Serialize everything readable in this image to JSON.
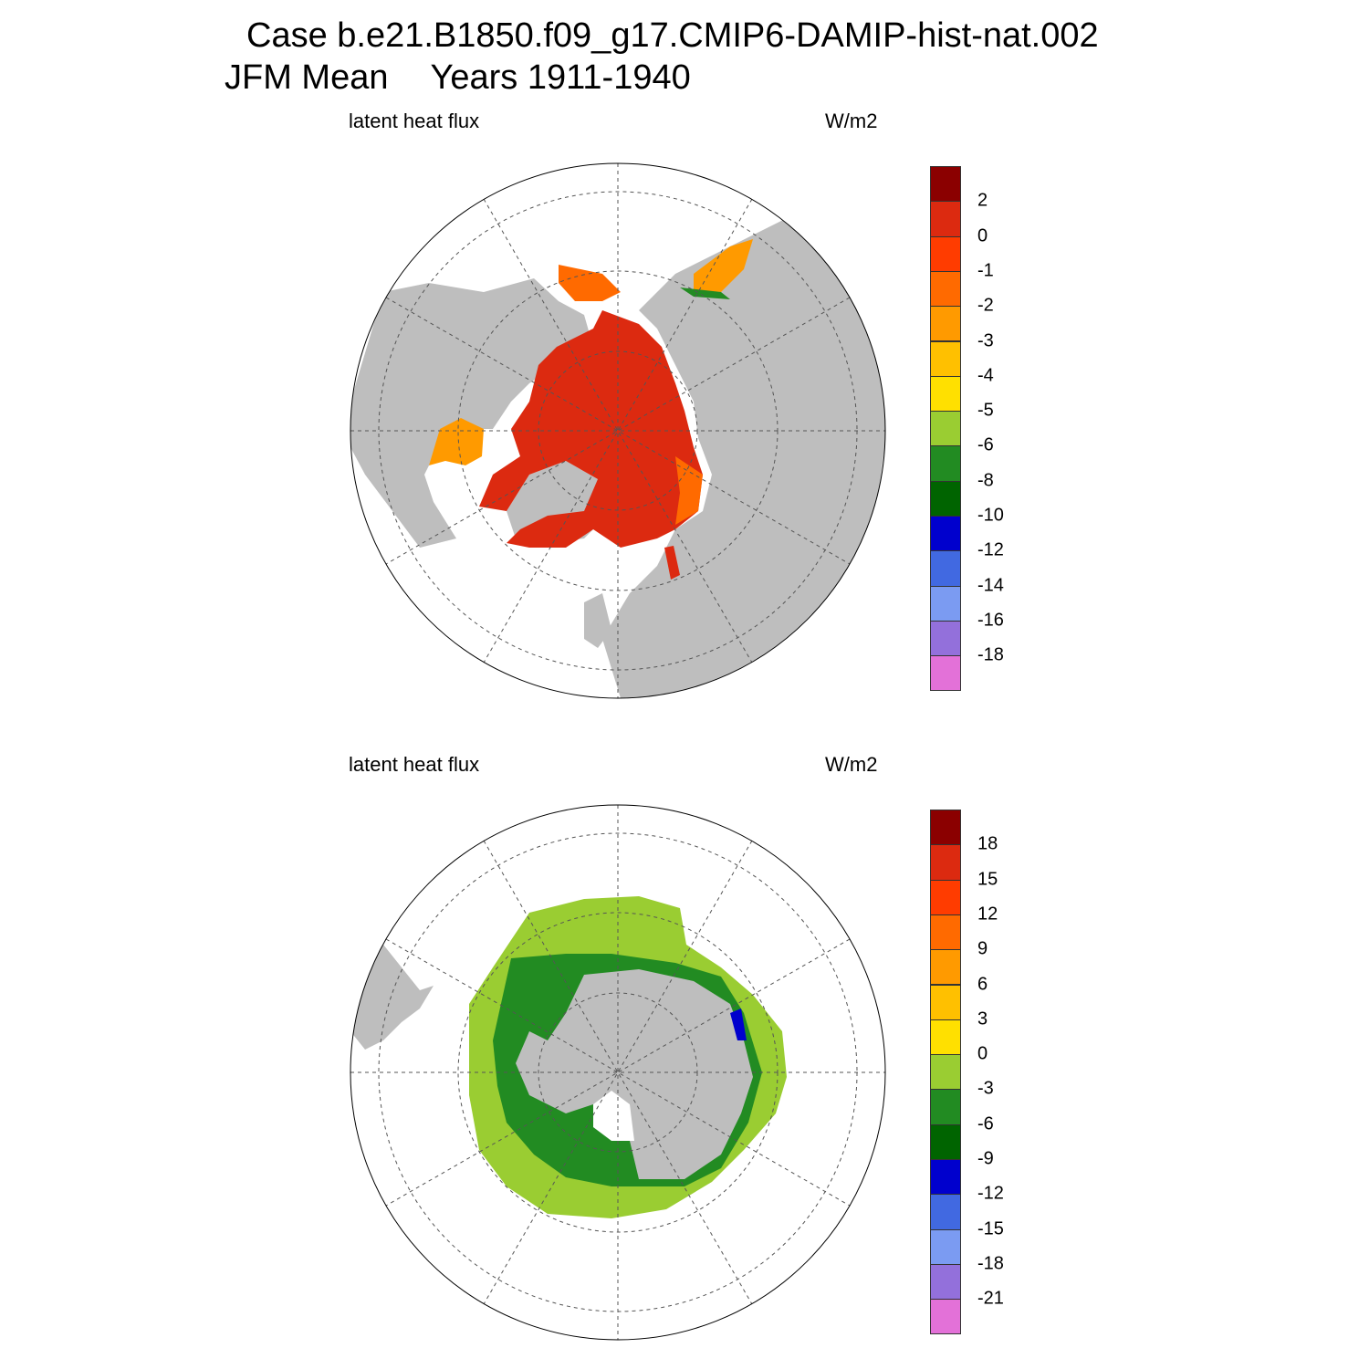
{
  "title": {
    "case": "Case b.e21.B1850.f09_g17.CMIP6-DAMIP-hist-nat.002",
    "season": "JFM Mean",
    "years": "Years 1911-1940"
  },
  "panels": [
    {
      "hemisphere": "north",
      "variable": "latent heat flux",
      "units": "W/m2",
      "colorbar": {
        "colors": [
          "#e371d8",
          "#9370db",
          "#7b9bf2",
          "#4169e1",
          "#0000cd",
          "#006400",
          "#228b22",
          "#9acd32",
          "#ffe000",
          "#ffc000",
          "#ff9a00",
          "#ff6a00",
          "#ff3c00",
          "#dc2a10",
          "#8b0000"
        ],
        "labels": [
          "-18",
          "-16",
          "-14",
          "-12",
          "-10",
          "-8",
          "-6",
          "-5",
          "-4",
          "-3",
          "-2",
          "-1",
          "0",
          "2"
        ]
      }
    },
    {
      "hemisphere": "south",
      "variable": "latent heat flux",
      "units": "W/m2",
      "colorbar": {
        "colors": [
          "#e371d8",
          "#9370db",
          "#7b9bf2",
          "#4169e1",
          "#0000cd",
          "#006400",
          "#228b22",
          "#9acd32",
          "#ffe000",
          "#ffc000",
          "#ff9a00",
          "#ff6a00",
          "#ff3c00",
          "#dc2a10",
          "#8b0000"
        ],
        "labels": [
          "-21",
          "-18",
          "-15",
          "-12",
          "-9",
          "-6",
          "-3",
          "0",
          "3",
          "6",
          "9",
          "12",
          "15",
          "18"
        ]
      }
    }
  ],
  "map_colors": {
    "land": "#bebebe",
    "ocean_nodata": "#ffffff",
    "grid": "#555555"
  }
}
